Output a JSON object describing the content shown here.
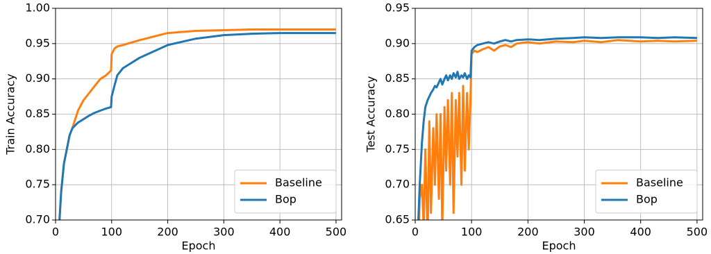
{
  "chart_data": [
    {
      "type": "line",
      "xlabel": "Epoch",
      "ylabel": "Train Accuracy",
      "x": [
        7,
        10,
        15,
        20,
        25,
        30,
        40,
        50,
        60,
        70,
        80,
        90,
        99,
        100,
        105,
        110,
        120,
        150,
        200,
        250,
        300,
        350,
        400,
        450,
        500
      ],
      "series": [
        {
          "name": "Baseline",
          "color": "#ff7f0e",
          "values": [
            0.7,
            0.74,
            0.78,
            0.8,
            0.82,
            0.83,
            0.855,
            0.87,
            0.88,
            0.89,
            0.9,
            0.905,
            0.912,
            0.935,
            0.943,
            0.946,
            0.948,
            0.955,
            0.965,
            0.968,
            0.969,
            0.97,
            0.97,
            0.97,
            0.97
          ]
        },
        {
          "name": "Bop",
          "color": "#1f77b4",
          "values": [
            0.7,
            0.74,
            0.78,
            0.8,
            0.82,
            0.83,
            0.838,
            0.843,
            0.848,
            0.852,
            0.855,
            0.858,
            0.86,
            0.875,
            0.89,
            0.905,
            0.915,
            0.93,
            0.948,
            0.957,
            0.962,
            0.964,
            0.965,
            0.965,
            0.965
          ]
        }
      ],
      "xlim": [
        0,
        510
      ],
      "ylim": [
        0.7,
        1.0
      ],
      "xticks": [
        0,
        100,
        200,
        300,
        400,
        500
      ],
      "yticks": [
        {
          "value": 0.7,
          "label": "0.70"
        },
        0.75,
        {
          "value": 0.8,
          "label": "0.80"
        },
        0.85,
        {
          "value": 0.9,
          "label": "0.90"
        },
        0.95,
        {
          "value": 1.0,
          "label": "1.00"
        }
      ],
      "grid": true,
      "legend": "lower right"
    },
    {
      "type": "line",
      "xlabel": "Epoch",
      "ylabel": "Test Accuracy",
      "x": [
        5,
        8,
        12,
        15,
        18,
        22,
        25,
        28,
        32,
        35,
        38,
        42,
        45,
        48,
        52,
        55,
        58,
        62,
        65,
        68,
        72,
        75,
        78,
        82,
        85,
        88,
        92,
        95,
        98,
        100,
        105,
        110,
        120,
        130,
        140,
        150,
        160,
        170,
        180,
        200,
        220,
        250,
        280,
        300,
        330,
        360,
        400,
        430,
        460,
        500
      ],
      "series": [
        {
          "name": "Baseline",
          "color": "#ff7f0e",
          "values": [
            0.6,
            0.68,
            0.7,
            0.64,
            0.75,
            0.62,
            0.79,
            0.66,
            0.78,
            0.7,
            0.8,
            0.68,
            0.8,
            0.64,
            0.81,
            0.72,
            0.82,
            0.7,
            0.83,
            0.66,
            0.82,
            0.74,
            0.83,
            0.7,
            0.84,
            0.72,
            0.83,
            0.75,
            0.82,
            0.885,
            0.89,
            0.888,
            0.892,
            0.895,
            0.89,
            0.896,
            0.898,
            0.895,
            0.9,
            0.902,
            0.9,
            0.903,
            0.902,
            0.904,
            0.902,
            0.905,
            0.903,
            0.904,
            0.903,
            0.904
          ]
        },
        {
          "name": "Bop",
          "color": "#1f77b4",
          "values": [
            0.64,
            0.7,
            0.76,
            0.79,
            0.81,
            0.82,
            0.825,
            0.83,
            0.835,
            0.84,
            0.838,
            0.845,
            0.85,
            0.842,
            0.85,
            0.855,
            0.848,
            0.855,
            0.85,
            0.858,
            0.852,
            0.86,
            0.85,
            0.855,
            0.852,
            0.858,
            0.85,
            0.855,
            0.852,
            0.89,
            0.895,
            0.898,
            0.9,
            0.902,
            0.9,
            0.903,
            0.905,
            0.903,
            0.905,
            0.906,
            0.905,
            0.907,
            0.908,
            0.909,
            0.908,
            0.909,
            0.909,
            0.908,
            0.909,
            0.908
          ]
        }
      ],
      "xlim": [
        0,
        510
      ],
      "ylim": [
        0.65,
        0.95
      ],
      "xticks": [
        0,
        100,
        200,
        300,
        400,
        500
      ],
      "yticks": [
        0.65,
        {
          "value": 0.7,
          "label": "0.70"
        },
        0.75,
        {
          "value": 0.8,
          "label": "0.80"
        },
        0.85,
        {
          "value": 0.9,
          "label": "0.90"
        },
        0.95
      ],
      "grid": true,
      "legend": "lower right"
    }
  ]
}
